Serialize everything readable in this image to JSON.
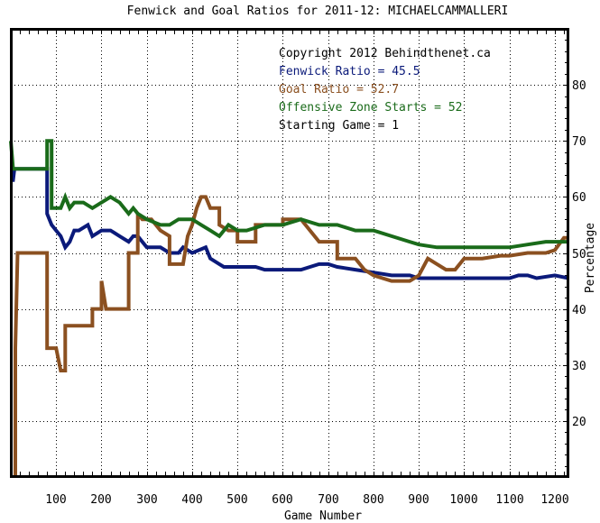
{
  "chart_data": {
    "type": "line",
    "title": "Fenwick and Goal Ratios for 2011-12: MICHAELCAMMALLERI",
    "xlabel": "Game Number",
    "ylabel": "Percentage",
    "xlim": [
      0,
      1230
    ],
    "ylim": [
      10,
      90
    ],
    "grid": true,
    "x_ticks": [
      "100",
      "200",
      "300",
      "400",
      "500",
      "600",
      "700",
      "800",
      "900",
      "1000",
      "1100",
      "1200"
    ],
    "y_ticks": [
      "20",
      "30",
      "40",
      "50",
      "60",
      "70",
      "80"
    ],
    "legend_position": "top-right",
    "annotations": [
      "Copyright 2012 Behindthenet.ca",
      "Fenwick Ratio = 45.5",
      "Goal Ratio = 52.7",
      "Offensive Zone Starts = 52",
      "Starting Game = 1"
    ],
    "colors": {
      "fenwick": "#0b1a7a",
      "goal": "#8b5020",
      "ozone": "#1a6b1a",
      "grid": "#000000",
      "frame": "#000000"
    },
    "series": [
      {
        "key": "fenwick",
        "values": [
          [
            0,
            63
          ],
          [
            5,
            63
          ],
          [
            8,
            65
          ],
          [
            80,
            65
          ],
          [
            80,
            57
          ],
          [
            90,
            55
          ],
          [
            100,
            54
          ],
          [
            110,
            53
          ],
          [
            120,
            51
          ],
          [
            130,
            52
          ],
          [
            140,
            54
          ],
          [
            150,
            54
          ],
          [
            170,
            55
          ],
          [
            180,
            53
          ],
          [
            200,
            54
          ],
          [
            220,
            54
          ],
          [
            240,
            53
          ],
          [
            260,
            52
          ],
          [
            270,
            53
          ],
          [
            280,
            53
          ],
          [
            290,
            52
          ],
          [
            300,
            51
          ],
          [
            330,
            51
          ],
          [
            350,
            50
          ],
          [
            370,
            50
          ],
          [
            380,
            51
          ],
          [
            400,
            50
          ],
          [
            430,
            51
          ],
          [
            440,
            49
          ],
          [
            460,
            48
          ],
          [
            470,
            47.5
          ],
          [
            500,
            47.5
          ],
          [
            540,
            47.5
          ],
          [
            560,
            47
          ],
          [
            600,
            47
          ],
          [
            640,
            47
          ],
          [
            660,
            47.5
          ],
          [
            680,
            48
          ],
          [
            700,
            48
          ],
          [
            720,
            47.5
          ],
          [
            760,
            47
          ],
          [
            800,
            46.5
          ],
          [
            840,
            46
          ],
          [
            880,
            46
          ],
          [
            900,
            45.5
          ],
          [
            960,
            45.5
          ],
          [
            1000,
            45.5
          ],
          [
            1080,
            45.5
          ],
          [
            1100,
            45.5
          ],
          [
            1120,
            46
          ],
          [
            1140,
            46
          ],
          [
            1160,
            45.5
          ],
          [
            1200,
            46
          ],
          [
            1230,
            45.5
          ]
        ]
      },
      {
        "key": "goal",
        "values": [
          [
            10,
            10
          ],
          [
            10,
            33
          ],
          [
            15,
            50
          ],
          [
            80,
            50
          ],
          [
            80,
            33
          ],
          [
            100,
            33
          ],
          [
            110,
            29
          ],
          [
            120,
            29
          ],
          [
            120,
            37
          ],
          [
            140,
            37
          ],
          [
            180,
            37
          ],
          [
            180,
            40
          ],
          [
            200,
            40
          ],
          [
            200,
            45
          ],
          [
            210,
            40
          ],
          [
            250,
            40
          ],
          [
            260,
            40
          ],
          [
            260,
            50
          ],
          [
            280,
            50
          ],
          [
            280,
            57
          ],
          [
            290,
            56
          ],
          [
            310,
            56
          ],
          [
            330,
            54
          ],
          [
            350,
            53
          ],
          [
            350,
            48
          ],
          [
            380,
            48
          ],
          [
            390,
            53
          ],
          [
            400,
            55
          ],
          [
            410,
            58
          ],
          [
            420,
            60
          ],
          [
            430,
            60
          ],
          [
            440,
            58
          ],
          [
            460,
            58
          ],
          [
            460,
            55
          ],
          [
            480,
            54
          ],
          [
            500,
            54
          ],
          [
            500,
            52
          ],
          [
            540,
            52
          ],
          [
            540,
            55
          ],
          [
            600,
            55
          ],
          [
            600,
            56
          ],
          [
            640,
            56
          ],
          [
            660,
            54
          ],
          [
            680,
            52
          ],
          [
            720,
            52
          ],
          [
            720,
            49
          ],
          [
            760,
            49
          ],
          [
            780,
            47
          ],
          [
            800,
            46
          ],
          [
            840,
            45
          ],
          [
            880,
            45
          ],
          [
            900,
            46
          ],
          [
            920,
            49
          ],
          [
            940,
            48
          ],
          [
            960,
            47
          ],
          [
            980,
            47
          ],
          [
            1000,
            49
          ],
          [
            1040,
            49
          ],
          [
            1080,
            49.5
          ],
          [
            1100,
            49.5
          ],
          [
            1140,
            50
          ],
          [
            1180,
            50
          ],
          [
            1200,
            50.5
          ],
          [
            1220,
            52.7
          ],
          [
            1230,
            52.7
          ]
        ]
      },
      {
        "key": "ozone",
        "values": [
          [
            0,
            70
          ],
          [
            5,
            65
          ],
          [
            80,
            65
          ],
          [
            80,
            70
          ],
          [
            90,
            70
          ],
          [
            90,
            58
          ],
          [
            100,
            58
          ],
          [
            110,
            58
          ],
          [
            120,
            60
          ],
          [
            130,
            58
          ],
          [
            140,
            59
          ],
          [
            160,
            59
          ],
          [
            180,
            58
          ],
          [
            200,
            59
          ],
          [
            220,
            60
          ],
          [
            240,
            59
          ],
          [
            260,
            57
          ],
          [
            270,
            58
          ],
          [
            280,
            57
          ],
          [
            300,
            56
          ],
          [
            330,
            55
          ],
          [
            350,
            55
          ],
          [
            370,
            56
          ],
          [
            400,
            56
          ],
          [
            420,
            55
          ],
          [
            440,
            54
          ],
          [
            460,
            53
          ],
          [
            480,
            55
          ],
          [
            500,
            54
          ],
          [
            520,
            54
          ],
          [
            560,
            55
          ],
          [
            600,
            55
          ],
          [
            640,
            56
          ],
          [
            680,
            55
          ],
          [
            720,
            55
          ],
          [
            760,
            54
          ],
          [
            800,
            54
          ],
          [
            840,
            53
          ],
          [
            880,
            52
          ],
          [
            900,
            51.5
          ],
          [
            940,
            51
          ],
          [
            980,
            51
          ],
          [
            1040,
            51
          ],
          [
            1100,
            51
          ],
          [
            1140,
            51.5
          ],
          [
            1180,
            52
          ],
          [
            1200,
            52
          ],
          [
            1230,
            52
          ]
        ]
      }
    ]
  }
}
